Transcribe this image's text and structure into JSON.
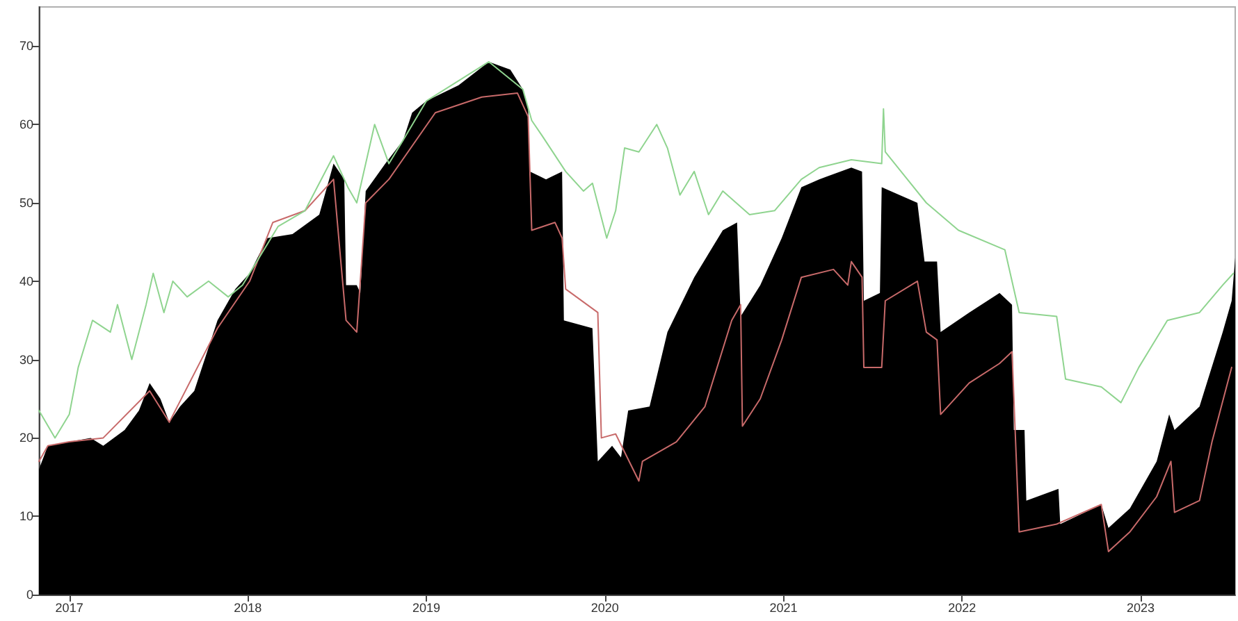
{
  "chart_data": {
    "type": "line",
    "xlim": [
      2016.83,
      2023.53
    ],
    "ylim": [
      0,
      75
    ],
    "xticks": [
      2017,
      2018,
      2019,
      2020,
      2021,
      2022,
      2023
    ],
    "yticks": [
      0,
      10,
      20,
      30,
      40,
      50,
      60,
      70
    ],
    "grid": false,
    "marker": "none",
    "line_style": "solid",
    "series": [
      {
        "type": "area",
        "color": "#000000",
        "x": [
          2016.83,
          2016.88,
          2017.0,
          2017.12,
          2017.19,
          2017.31,
          2017.39,
          2017.45,
          2017.51,
          2017.56,
          2017.62,
          2017.7,
          2017.83,
          2017.93,
          2018.01,
          2018.11,
          2018.25,
          2018.4,
          2018.48,
          2018.54,
          2018.55,
          2018.61,
          2018.63,
          2018.66,
          2018.77,
          2018.87,
          2018.92,
          2019.0,
          2019.18,
          2019.35,
          2019.47,
          2019.54,
          2019.57,
          2019.58,
          2019.67,
          2019.76,
          2019.77,
          2019.93,
          2019.96,
          2020.04,
          2020.09,
          2020.13,
          2020.25,
          2020.35,
          2020.5,
          2020.66,
          2020.74,
          2020.76,
          2020.87,
          2020.99,
          2021.1,
          2021.2,
          2021.38,
          2021.44,
          2021.45,
          2021.54,
          2021.55,
          2021.75,
          2021.79,
          2021.86,
          2021.88,
          2022.04,
          2022.21,
          2022.28,
          2022.29,
          2022.35,
          2022.36,
          2022.54,
          2022.55,
          2022.78,
          2022.82,
          2022.94,
          2023.09,
          2023.16,
          2023.19,
          2023.33,
          2023.46,
          2023.51,
          2023.53
        ],
        "values": [
          16,
          19,
          19.5,
          20,
          19,
          21,
          23.5,
          27,
          25,
          22,
          24,
          26,
          35,
          39,
          41,
          45.5,
          46,
          48.5,
          55,
          53,
          39.5,
          39.5,
          38.5,
          51.5,
          55,
          58,
          61.5,
          63,
          65,
          68,
          67,
          64.5,
          62,
          54,
          53,
          54,
          35,
          34,
          17,
          19,
          17.5,
          23.5,
          24,
          33.5,
          40.5,
          46.5,
          47.5,
          35.5,
          39.5,
          45.5,
          52,
          53,
          54.5,
          54,
          37.5,
          38.5,
          52,
          50,
          42.5,
          42.5,
          33.5,
          36,
          38.5,
          37,
          21,
          21,
          12,
          13.5,
          9,
          11.5,
          8.5,
          11,
          17,
          23,
          21,
          24,
          33.5,
          37.5,
          43
        ]
      },
      {
        "color": "#c86a6a",
        "x": [
          2016.83,
          2016.88,
          2017.0,
          2017.19,
          2017.45,
          2017.56,
          2017.83,
          2018.01,
          2018.14,
          2018.32,
          2018.48,
          2018.55,
          2018.61,
          2018.66,
          2018.79,
          2019.05,
          2019.31,
          2019.51,
          2019.57,
          2019.59,
          2019.72,
          2019.76,
          2019.78,
          2019.96,
          2019.98,
          2020.06,
          2020.19,
          2020.21,
          2020.4,
          2020.56,
          2020.71,
          2020.76,
          2020.77,
          2020.87,
          2020.99,
          2021.1,
          2021.28,
          2021.36,
          2021.38,
          2021.44,
          2021.45,
          2021.55,
          2021.57,
          2021.75,
          2021.8,
          2021.86,
          2021.88,
          2022.04,
          2022.21,
          2022.28,
          2022.32,
          2022.53,
          2022.78,
          2022.82,
          2022.94,
          2023.09,
          2023.17,
          2023.19,
          2023.33,
          2023.4,
          2023.51
        ],
        "values": [
          17,
          19,
          19.5,
          20,
          26,
          22,
          34,
          40,
          47.5,
          49,
          53,
          35,
          33.5,
          50,
          53,
          61.5,
          63.5,
          64,
          61,
          46.5,
          47.5,
          45.5,
          39,
          36,
          20,
          20.5,
          14.5,
          17,
          19.5,
          24,
          35,
          37,
          21.5,
          25,
          32.5,
          40.5,
          41.5,
          39.5,
          42.5,
          40.5,
          29,
          29,
          37.5,
          40,
          33.5,
          32.5,
          23,
          27,
          29.5,
          31,
          8,
          9,
          11.5,
          5.5,
          8,
          12.5,
          17,
          10.5,
          12,
          19.5,
          29
        ]
      },
      {
        "color": "#8fd48f",
        "x": [
          2016.83,
          2016.92,
          2017.0,
          2017.05,
          2017.13,
          2017.23,
          2017.27,
          2017.35,
          2017.43,
          2017.47,
          2017.53,
          2017.58,
          2017.66,
          2017.78,
          2017.89,
          2017.97,
          2018.17,
          2018.32,
          2018.48,
          2018.56,
          2018.61,
          2018.71,
          2018.79,
          2018.87,
          2019.0,
          2019.35,
          2019.54,
          2019.59,
          2019.65,
          2019.78,
          2019.88,
          2019.93,
          2020.01,
          2020.06,
          2020.11,
          2020.19,
          2020.29,
          2020.35,
          2020.42,
          2020.5,
          2020.58,
          2020.66,
          2020.81,
          2020.95,
          2021.1,
          2021.2,
          2021.38,
          2021.55,
          2021.56,
          2021.57,
          2021.8,
          2021.98,
          2022.24,
          2022.32,
          2022.53,
          2022.58,
          2022.78,
          2022.89,
          2022.99,
          2023.15,
          2023.33,
          2023.46,
          2023.52
        ],
        "values": [
          23.5,
          20,
          23,
          29,
          35,
          33.5,
          37,
          30,
          37,
          41,
          36,
          40,
          38,
          40,
          38,
          39.5,
          47,
          49,
          56,
          52,
          50,
          60,
          55,
          58,
          63,
          68,
          64.5,
          60.5,
          58.5,
          54,
          51.5,
          52.5,
          45.5,
          49,
          57,
          56.5,
          60,
          57,
          51,
          54,
          48.5,
          51.5,
          48.5,
          49,
          53,
          54.5,
          55.5,
          55,
          62,
          56.5,
          50,
          46.5,
          44,
          36,
          35.5,
          27.5,
          26.5,
          24.5,
          29,
          35,
          36,
          39.5,
          41
        ]
      }
    ]
  }
}
